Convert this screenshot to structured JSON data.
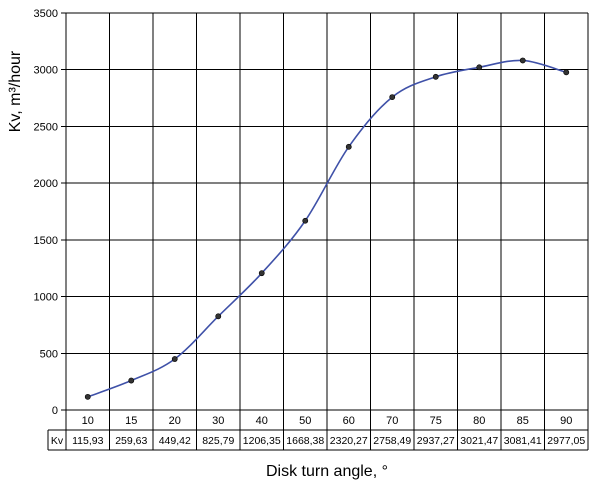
{
  "chart_data": {
    "type": "line",
    "title": "",
    "xlabel": "Disk turn angle, °",
    "ylabel": "Kv, m³/hour",
    "ylim": [
      0,
      3500
    ],
    "y_ticks": [
      "0",
      "500",
      "1000",
      "1500",
      "2000",
      "2500",
      "3000",
      "3500"
    ],
    "categories": [
      "10",
      "15",
      "20",
      "30",
      "40",
      "50",
      "60",
      "70",
      "75",
      "80",
      "85",
      "90"
    ],
    "table_row_label": "Kv",
    "table_values": [
      "115,93",
      "259,63",
      "449,42",
      "825,79",
      "1206,35",
      "1668,38",
      "2320,27",
      "2758,49",
      "2937,27",
      "3021,47",
      "3081,41",
      "2977,05"
    ],
    "series": [
      {
        "values": [
          115.93,
          259.63,
          449.42,
          825.79,
          1206.35,
          1668.38,
          2320.27,
          2758.49,
          2937.27,
          3021.47,
          3081.41,
          2977.05
        ]
      }
    ],
    "grid": true,
    "legend": "none",
    "line_color": "#3f51a8",
    "point_color": "#333333"
  }
}
